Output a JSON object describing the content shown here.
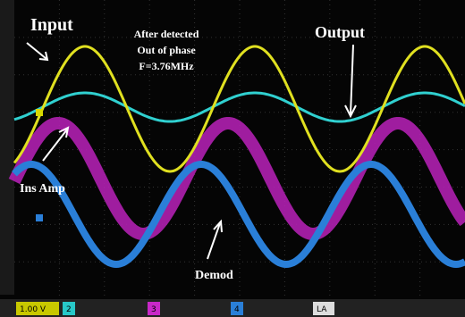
{
  "annotations": {
    "input": "Input",
    "detected_line1": "After detected",
    "detected_line2": "Out of phase",
    "frequency": "F=3.76MHz",
    "output": "Output",
    "ins_amp": "Ins Amp",
    "demod": "Demod"
  },
  "status_bar": {
    "channel_1": "1.00 V",
    "channel_2": "2",
    "channel_3": "3",
    "channel_4": "4",
    "logic": "LA"
  }
}
